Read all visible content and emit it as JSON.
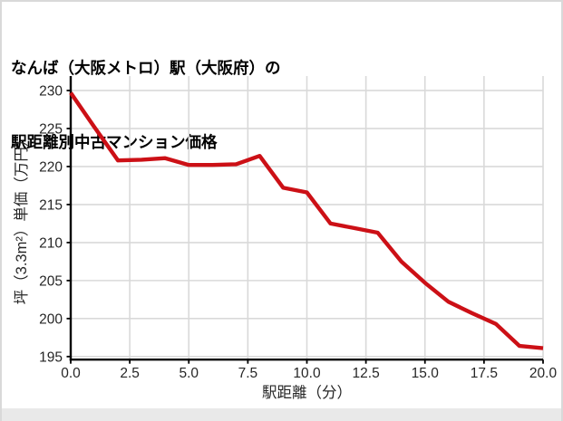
{
  "title": {
    "line1": "なんば（大阪メトロ）駅（大阪府）の",
    "line2": "駅距離別中古マンション価格"
  },
  "card": {
    "background": "#ffffff",
    "border_color": "#d9d9d9",
    "footer_strip_color": "#e9e9e9"
  },
  "chart_data": {
    "type": "line",
    "title": "なんば（大阪メトロ）駅（大阪府）の駅距離別中古マンション価格",
    "xlabel": "駅距離（分）",
    "ylabel": "坪（3.3m²）単価（万円）",
    "x": [
      0,
      1,
      2,
      3,
      4,
      5,
      6,
      7,
      8,
      9,
      10,
      11,
      12,
      13,
      14,
      15,
      16,
      17,
      18,
      19,
      20
    ],
    "values": [
      229.7,
      225.2,
      220.8,
      220.9,
      221.1,
      220.2,
      220.2,
      220.3,
      221.4,
      217.2,
      216.6,
      212.5,
      211.9,
      211.3,
      207.5,
      204.7,
      202.2,
      200.7,
      199.3,
      196.4,
      196.1
    ],
    "x_ticks": [
      0,
      2.5,
      5,
      7.5,
      10,
      12.5,
      15,
      17.5,
      20
    ],
    "x_tick_labels": [
      "0.0",
      "2.5",
      "5.0",
      "7.5",
      "10.0",
      "12.5",
      "15.0",
      "17.5",
      "20.0"
    ],
    "y_ticks": [
      195,
      200,
      205,
      210,
      215,
      220,
      225,
      230
    ],
    "y_tick_labels": [
      "195",
      "200",
      "205",
      "210",
      "215",
      "220",
      "225",
      "230"
    ],
    "xlim": [
      0,
      20
    ],
    "ylim": [
      194.6,
      231.9
    ],
    "grid": true,
    "legend": false,
    "colors": {
      "line": "#cc1016",
      "grid": "#d9d9d9",
      "axis": "#000000",
      "tick_text": "#262626"
    }
  }
}
